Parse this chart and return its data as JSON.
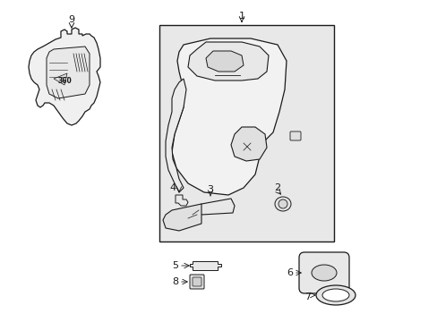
{
  "bg_color": "#ffffff",
  "line_color": "#1a1a1a",
  "fill_panel": "#e8e8e8",
  "fill_part": "#f0f0f0",
  "fig_width": 4.89,
  "fig_height": 3.6,
  "dpi": 100
}
